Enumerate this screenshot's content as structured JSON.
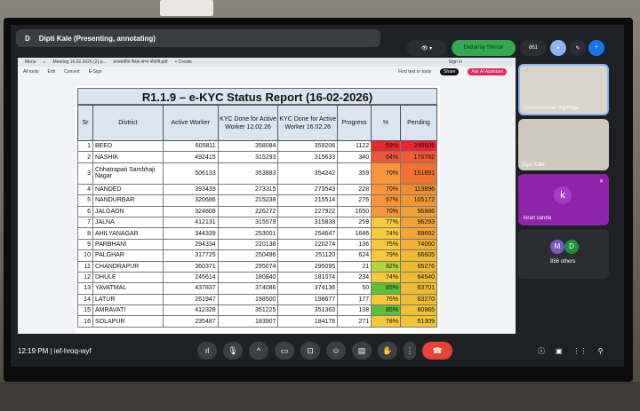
{
  "meet": {
    "presenter_initial": "D",
    "presenter": "Dipti Kale (Presenting, annotating)",
    "host_pill": "Dattatray Shinde",
    "participant_count": "861",
    "time": "12:19 PM",
    "separator": "|",
    "meeting_code": "ief-hroq-wyf"
  },
  "pdf": {
    "menu": "Menu",
    "tab1": "Meeting 16.02.2026 (2).p...",
    "tab2": "प्रशासकीय बैठक सभा नोंदणी.pdf",
    "create": "+ Create",
    "tools": [
      "All tools",
      "Edit",
      "Convert",
      "E-Sign"
    ],
    "sign_in": "Sign in",
    "find": "Find text or tools",
    "share": "Share",
    "ai": "Ask AI Assistant"
  },
  "report": {
    "title": "R1.1.9 – e-KYC Status Report (16-02-2026)",
    "headers": [
      "Sr",
      "District",
      "Active Worker",
      "KYC Done for Active Worker 12.02.26",
      "KYC Done for Active Worker 16.02.26",
      "Progress",
      "%",
      "Pending"
    ],
    "rows": [
      [
        "1",
        "BEED",
        "605811",
        "358084",
        "359206",
        "1122",
        "59%",
        "246605"
      ],
      [
        "2",
        "NASHIK",
        "492415",
        "315293",
        "315633",
        "340",
        "64%",
        "176782"
      ],
      [
        "3",
        "Chhatrapati Sambhaji Nagar",
        "506133",
        "353883",
        "354242",
        "359",
        "70%",
        "151891"
      ],
      [
        "4",
        "NANDED",
        "393439",
        "273315",
        "273543",
        "228",
        "70%",
        "119896"
      ],
      [
        "5",
        "NANDURBAR",
        "320686",
        "215238",
        "215514",
        "276",
        "67%",
        "105172"
      ],
      [
        "6",
        "JALGAON",
        "324808",
        "226272",
        "227922",
        "1650",
        "70%",
        "96886"
      ],
      [
        "7",
        "JALNA",
        "412131",
        "315579",
        "315838",
        "259",
        "77%",
        "96293"
      ],
      [
        "8",
        "AHILYANAGAR",
        "344339",
        "253001",
        "254647",
        "1646",
        "74%",
        "89692"
      ],
      [
        "9",
        "PARBHANI",
        "294334",
        "220138",
        "220274",
        "136",
        "75%",
        "74060"
      ],
      [
        "10",
        "PALGHAR",
        "317725",
        "250496",
        "251120",
        "624",
        "79%",
        "66605"
      ],
      [
        "11",
        "CHANDRAPUR",
        "360371",
        "295074",
        "295095",
        "21",
        "82%",
        "65276"
      ],
      [
        "12",
        "DHULE",
        "245614",
        "180840",
        "181074",
        "234",
        "74%",
        "64540"
      ],
      [
        "13",
        "YAVATMAL",
        "437837",
        "374086",
        "374136",
        "50",
        "85%",
        "63701"
      ],
      [
        "14",
        "LATUR",
        "261947",
        "198500",
        "198677",
        "177",
        "76%",
        "63270"
      ],
      [
        "15",
        "AMRAVATI",
        "412328",
        "351225",
        "351363",
        "138",
        "85%",
        "60965"
      ],
      [
        "16",
        "SOLAPUR",
        "235487",
        "183907",
        "184178",
        "271",
        "78%",
        "51309"
      ]
    ]
  },
  "tiles": [
    {
      "label": "commissioner mgnrega"
    },
    {
      "label": "Dipti Kale"
    },
    {
      "initial": "k",
      "label": "kiran sarote"
    },
    {
      "initials": [
        "M",
        "D"
      ],
      "label": "856 others"
    }
  ],
  "colors": {
    "accent_green": "#1e8e3e",
    "hangup": "#ea4335",
    "tile_purple": "#8e24aa"
  }
}
